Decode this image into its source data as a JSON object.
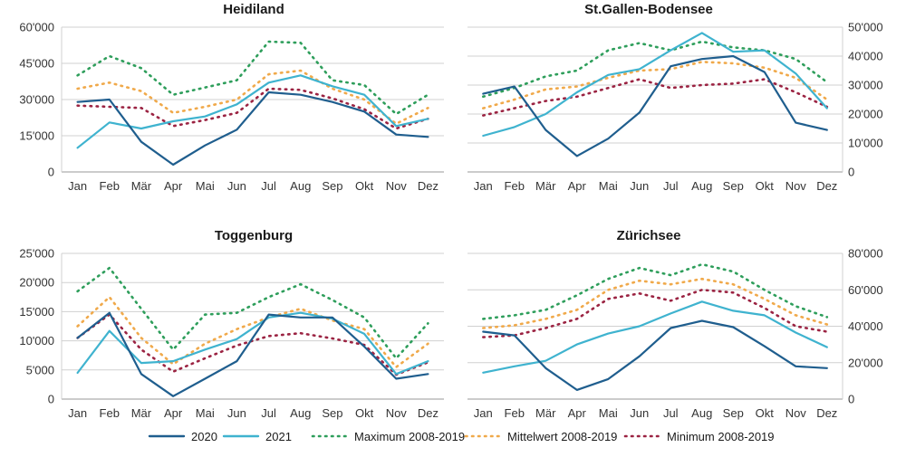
{
  "colors": {
    "s2020": "#1f5e8e",
    "s2021": "#3fb3cf",
    "max": "#2e9e5b",
    "mean": "#f0a94a",
    "min": "#9b2342",
    "grid": "#d0d0d0",
    "axis": "#9a9a9a"
  },
  "legend": [
    {
      "key": "s2020",
      "label": "2020",
      "style": "solid"
    },
    {
      "key": "s2021",
      "label": "2021",
      "style": "solid"
    },
    {
      "key": "max",
      "label": "Maximum 2008-2019",
      "style": "dotted"
    },
    {
      "key": "mean",
      "label": "Mittelwert 2008-2019",
      "style": "dotted"
    },
    {
      "key": "min",
      "label": "Minimum 2008-2019",
      "style": "dotted"
    }
  ],
  "chart_data": [
    {
      "type": "line",
      "title": "Heidiland",
      "axis_side": "left",
      "categories": [
        "Jan",
        "Feb",
        "Mär",
        "Apr",
        "Mai",
        "Jun",
        "Jul",
        "Aug",
        "Sep",
        "Okt",
        "Nov",
        "Dez"
      ],
      "ylim": [
        0,
        60000
      ],
      "yticks": [
        0,
        15000,
        30000,
        45000,
        60000
      ],
      "ytick_labels": [
        "0",
        "15'000",
        "30'000",
        "45'000",
        "60'000"
      ],
      "grid": true,
      "series": [
        {
          "key": "s2020",
          "name": "2020",
          "values": [
            29000,
            30000,
            12500,
            3000,
            11000,
            17500,
            33000,
            32000,
            29000,
            25000,
            15500,
            14500
          ]
        },
        {
          "key": "s2021",
          "name": "2021",
          "values": [
            10000,
            20500,
            18000,
            21000,
            23000,
            28000,
            37000,
            40000,
            35500,
            32000,
            19000,
            22000
          ]
        },
        {
          "key": "max",
          "name": "Maximum 2008-2019",
          "values": [
            40000,
            48000,
            43000,
            32000,
            35000,
            38000,
            54000,
            53500,
            38000,
            36000,
            24000,
            32000
          ]
        },
        {
          "key": "mean",
          "name": "Mittelwert 2008-2019",
          "values": [
            34500,
            37000,
            33500,
            24500,
            27000,
            30000,
            40500,
            42000,
            34500,
            30000,
            20000,
            26500
          ]
        },
        {
          "key": "min",
          "name": "Minimum 2008-2019",
          "values": [
            27500,
            27000,
            26500,
            19000,
            21500,
            24500,
            34500,
            34000,
            30500,
            26000,
            18000,
            22000
          ]
        }
      ]
    },
    {
      "type": "line",
      "title": "St.Gallen-Bodensee",
      "axis_side": "right",
      "categories": [
        "Jan",
        "Feb",
        "Mär",
        "Apr",
        "Mai",
        "Jun",
        "Jul",
        "Aug",
        "Sep",
        "Okt",
        "Nov",
        "Dez"
      ],
      "ylim": [
        0,
        50000
      ],
      "yticks": [
        0,
        10000,
        20000,
        30000,
        40000,
        50000
      ],
      "ytick_labels": [
        "0",
        "10'000",
        "20'000",
        "30'000",
        "40'000",
        "50'000"
      ],
      "grid": true,
      "series": [
        {
          "key": "s2020",
          "name": "2020",
          "values": [
            27000,
            29500,
            14500,
            5500,
            11500,
            20500,
            36500,
            39000,
            40000,
            34500,
            17000,
            14500
          ]
        },
        {
          "key": "s2021",
          "name": "2021",
          "values": [
            12500,
            15500,
            20000,
            27500,
            33500,
            35500,
            42000,
            48000,
            41500,
            42000,
            34000,
            22000
          ]
        },
        {
          "key": "max",
          "name": "Maximum 2008-2019",
          "values": [
            26000,
            29000,
            33000,
            35000,
            42000,
            44500,
            42000,
            45000,
            43000,
            42000,
            39000,
            31000
          ]
        },
        {
          "key": "mean",
          "name": "Mittelwert 2008-2019",
          "values": [
            22000,
            25000,
            28500,
            29500,
            32500,
            35000,
            35500,
            38000,
            37500,
            36000,
            32500,
            25000
          ]
        },
        {
          "key": "min",
          "name": "Minimum 2008-2019",
          "values": [
            19500,
            22000,
            24500,
            26000,
            29000,
            32000,
            29000,
            30000,
            30500,
            32000,
            27500,
            22500
          ]
        }
      ]
    },
    {
      "type": "line",
      "title": "Toggenburg",
      "axis_side": "left",
      "categories": [
        "Jan",
        "Feb",
        "Mär",
        "Apr",
        "Mai",
        "Jun",
        "Jul",
        "Aug",
        "Sep",
        "Okt",
        "Nov",
        "Dez"
      ],
      "ylim": [
        0,
        25000
      ],
      "yticks": [
        0,
        5000,
        10000,
        15000,
        20000,
        25000
      ],
      "ytick_labels": [
        "0",
        "5'000",
        "10'000",
        "15'000",
        "20'000",
        "25'000"
      ],
      "grid": true,
      "series": [
        {
          "key": "s2020",
          "name": "2020",
          "values": [
            10500,
            14800,
            4300,
            500,
            3500,
            6500,
            14500,
            14000,
            14000,
            9000,
            3500,
            4300
          ]
        },
        {
          "key": "s2021",
          "name": "2021",
          "values": [
            4500,
            11700,
            6200,
            6500,
            8500,
            10300,
            14000,
            14800,
            13800,
            11200,
            4300,
            6500
          ]
        },
        {
          "key": "max",
          "name": "Maximum 2008-2019",
          "values": [
            18500,
            22500,
            15500,
            8500,
            14500,
            14800,
            17500,
            19700,
            17000,
            14000,
            7000,
            13000
          ]
        },
        {
          "key": "mean",
          "name": "Mittelwert 2008-2019",
          "values": [
            12500,
            17500,
            10500,
            6000,
            9500,
            12000,
            14000,
            15500,
            13500,
            12000,
            5500,
            9500
          ]
        },
        {
          "key": "min",
          "name": "Minimum 2008-2019",
          "values": [
            10500,
            14500,
            8500,
            4700,
            7000,
            9200,
            10800,
            11300,
            10400,
            9300,
            4200,
            6300
          ]
        }
      ]
    },
    {
      "type": "line",
      "title": "Zürichsee",
      "axis_side": "right",
      "categories": [
        "Jan",
        "Feb",
        "Mär",
        "Apr",
        "Mai",
        "Jun",
        "Jul",
        "Aug",
        "Sep",
        "Okt",
        "Nov",
        "Dez"
      ],
      "ylim": [
        0,
        80000
      ],
      "yticks": [
        0,
        20000,
        40000,
        60000,
        80000
      ],
      "ytick_labels": [
        "0",
        "20'000",
        "40'000",
        "60'000",
        "80'000"
      ],
      "grid": true,
      "series": [
        {
          "key": "s2020",
          "name": "2020",
          "values": [
            37000,
            35000,
            17000,
            5000,
            11000,
            23500,
            39000,
            43000,
            39500,
            29000,
            18000,
            17000
          ]
        },
        {
          "key": "s2021",
          "name": "2021",
          "values": [
            14500,
            18000,
            21000,
            30000,
            36000,
            40000,
            47000,
            53500,
            48500,
            46000,
            36500,
            28500
          ]
        },
        {
          "key": "max",
          "name": "Maximum 2008-2019",
          "values": [
            44000,
            46000,
            49000,
            57000,
            66000,
            72000,
            68000,
            74000,
            70000,
            60000,
            51000,
            45000
          ]
        },
        {
          "key": "mean",
          "name": "Mittelwert 2008-2019",
          "values": [
            39000,
            40500,
            44000,
            49000,
            60000,
            65000,
            63000,
            66000,
            63000,
            55000,
            46000,
            41000
          ]
        },
        {
          "key": "min",
          "name": "Minimum 2008-2019",
          "values": [
            34000,
            35000,
            39000,
            44000,
            55000,
            58000,
            54000,
            60000,
            58500,
            50000,
            40000,
            37000
          ]
        }
      ]
    }
  ]
}
